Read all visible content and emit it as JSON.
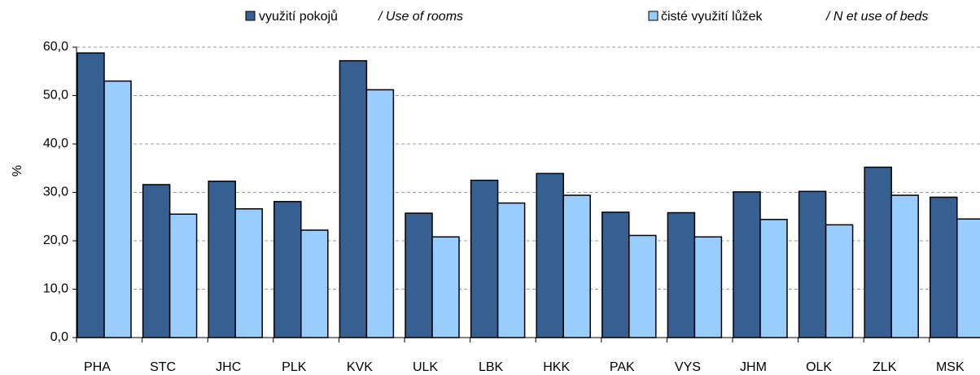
{
  "chart_data": {
    "type": "bar",
    "y_label": "%",
    "categories": [
      "PHA",
      "STC",
      "JHC",
      "PLK",
      "KVK",
      "ULK",
      "LBK",
      "HKK",
      "PAK",
      "VYS",
      "JHM",
      "OLK",
      "ZLK",
      "MSK"
    ],
    "series": [
      {
        "name": "využití pokojů",
        "name_en": "/ Use  of rooms",
        "color": "#376092",
        "values": [
          58.8,
          31.6,
          32.3,
          28.1,
          57.2,
          25.7,
          32.5,
          33.9,
          25.9,
          25.8,
          30.1,
          30.2,
          35.2,
          29.0
        ]
      },
      {
        "name": "čisté využití lůžek",
        "name_en": "/ N et use of beds",
        "color": "#99ccff",
        "values": [
          53.0,
          25.5,
          26.6,
          22.2,
          51.2,
          20.8,
          27.8,
          29.4,
          21.1,
          20.8,
          24.4,
          23.3,
          29.4,
          24.5
        ]
      }
    ],
    "ylim": [
      0,
      60
    ],
    "yticks": [
      {
        "value": 0,
        "label": "0,0"
      },
      {
        "value": 10,
        "label": "10,0"
      },
      {
        "value": 20,
        "label": "20,0"
      },
      {
        "value": 30,
        "label": "30,0"
      },
      {
        "value": 40,
        "label": "40,0"
      },
      {
        "value": 50,
        "label": "50,0"
      },
      {
        "value": 60,
        "label": "60,0"
      }
    ],
    "grid": true
  }
}
